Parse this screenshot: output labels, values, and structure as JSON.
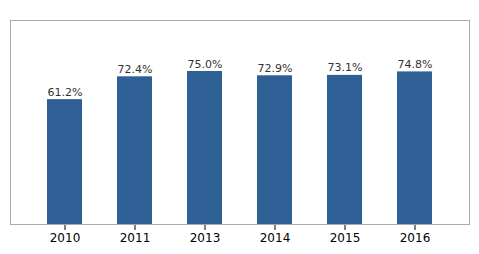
{
  "chart_data": {
    "type": "bar",
    "categories": [
      "2010",
      "2011",
      "2013",
      "2014",
      "2015",
      "2016"
    ],
    "values": [
      61.2,
      72.4,
      75.0,
      72.9,
      73.1,
      74.8
    ],
    "value_labels": [
      "61.2%",
      "72.4%",
      "75.0%",
      "72.9%",
      "73.1%",
      "74.8%"
    ],
    "data_labels": true,
    "color": "#2E6096",
    "ylim": [
      0,
      100
    ],
    "grid": false,
    "tick_labels": "x"
  }
}
